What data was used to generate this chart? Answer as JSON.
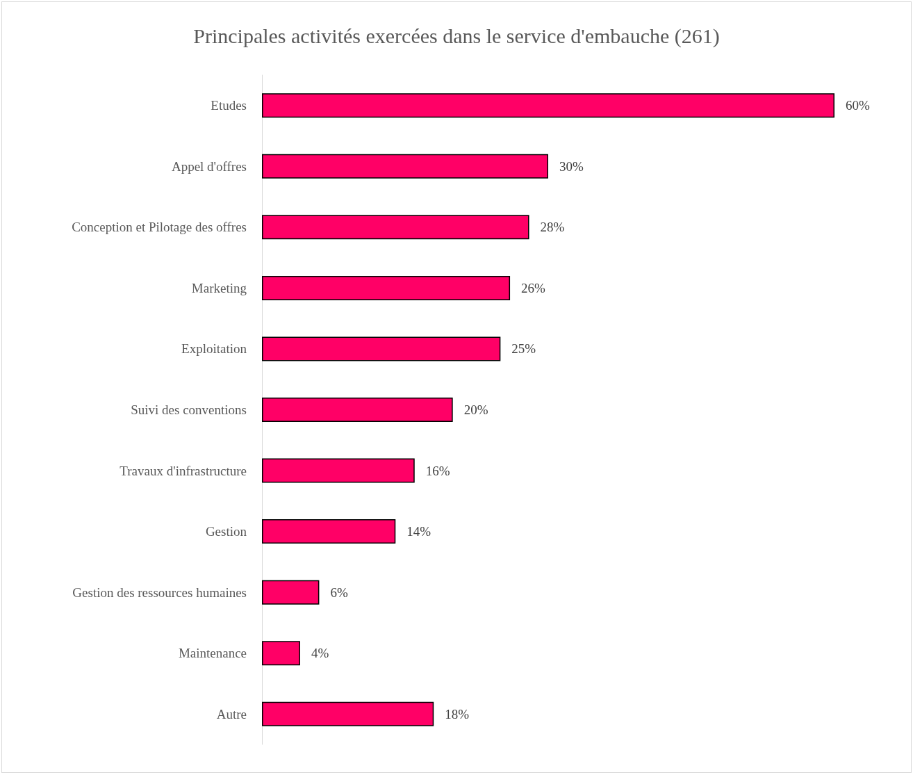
{
  "chart_data": {
    "type": "bar",
    "orientation": "horizontal",
    "title": "Principales activités exercées dans le service d'embauche (261)",
    "categories": [
      "Etudes",
      "Appel d'offres",
      "Conception et Pilotage des offres",
      "Marketing",
      "Exploitation",
      "Suivi des conventions",
      "Travaux d'infrastructure",
      "Gestion",
      "Gestion des ressources humaines",
      "Maintenance",
      "Autre"
    ],
    "values": [
      60,
      30,
      28,
      26,
      25,
      20,
      16,
      14,
      6,
      4,
      18
    ],
    "value_labels": [
      "60%",
      "30%",
      "28%",
      "26%",
      "25%",
      "20%",
      "16%",
      "14%",
      "6%",
      "4%",
      "18%"
    ],
    "color": "#ff0066"
  }
}
